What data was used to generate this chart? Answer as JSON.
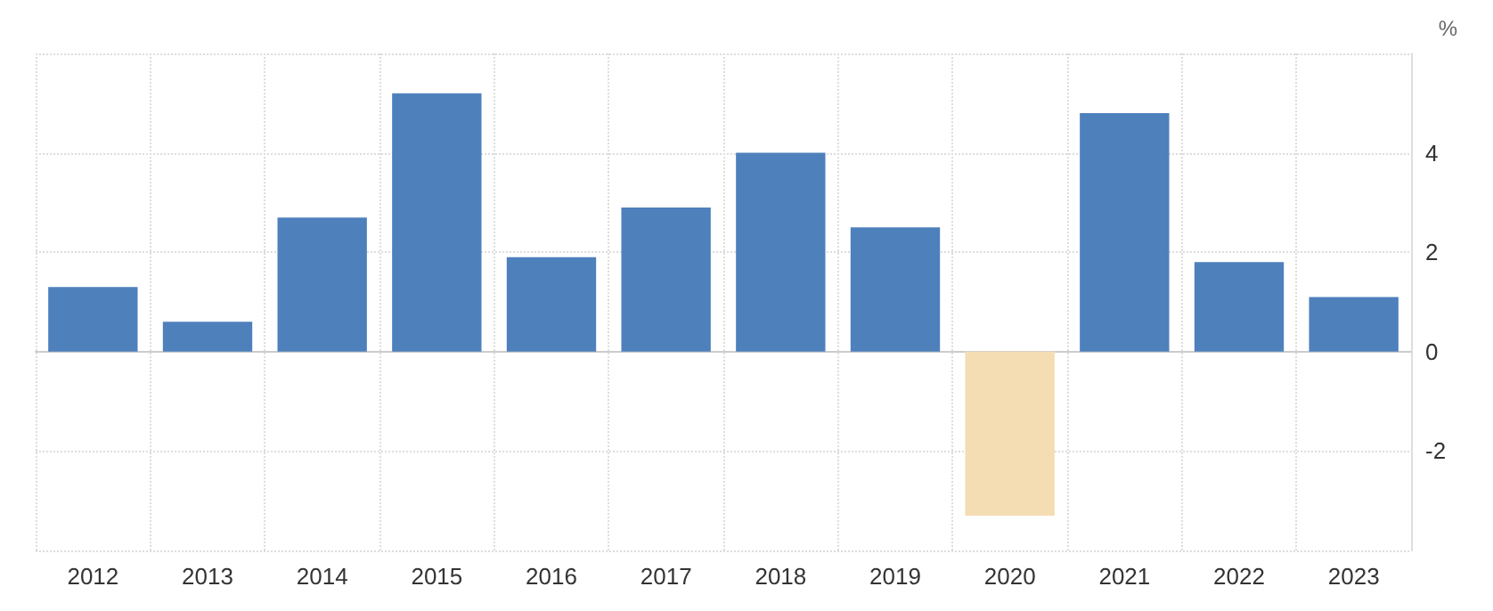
{
  "chart_data": {
    "type": "bar",
    "ylabel": "%",
    "categories": [
      "2012",
      "2013",
      "2014",
      "2015",
      "2016",
      "2017",
      "2018",
      "2019",
      "2020",
      "2021",
      "2022",
      "2023"
    ],
    "values": [
      1.3,
      0.6,
      2.7,
      5.2,
      1.9,
      2.9,
      4.0,
      2.5,
      -3.3,
      4.8,
      1.8,
      1.1
    ],
    "colors": [
      "#4e80bc",
      "#4e80bc",
      "#4e80bc",
      "#4e80bc",
      "#4e80bc",
      "#4e80bc",
      "#4e80bc",
      "#4e80bc",
      "#f4ddb3",
      "#4e80bc",
      "#4e80bc",
      "#4e80bc"
    ],
    "ylim": [
      -4,
      6
    ],
    "yticks": [
      {
        "value": -4,
        "label": null
      },
      -2,
      0,
      2,
      4,
      {
        "value": 6,
        "label": null
      }
    ],
    "grid": true
  }
}
